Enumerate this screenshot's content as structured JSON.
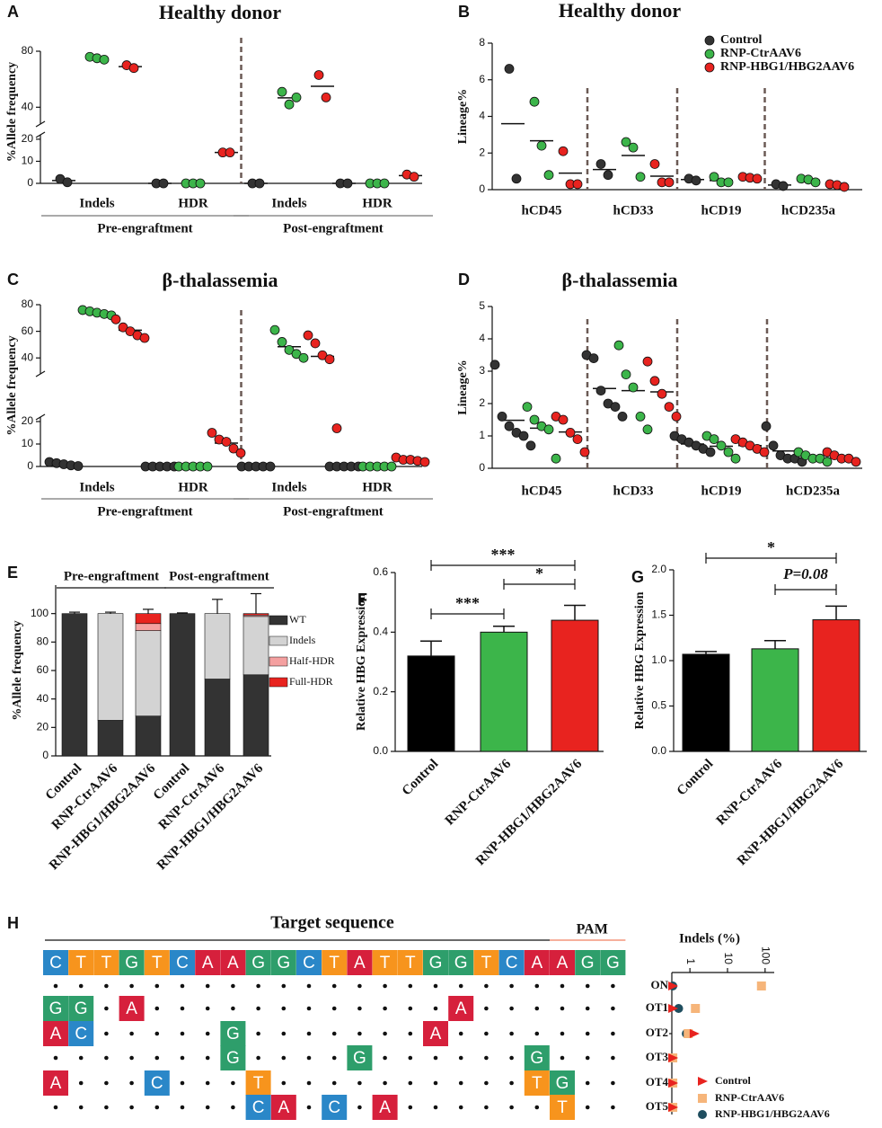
{
  "chart_data": [
    {
      "panel": "A",
      "type": "dot",
      "title": "Healthy donor",
      "ylabel": "%Allele frequency",
      "categories": [
        "Indels",
        "HDR",
        "Indels",
        "HDR"
      ],
      "groups": [
        "Pre-engraftment",
        "Post-engraftment"
      ],
      "dividers": "groups",
      "ysegments": [
        [
          0,
          22
        ],
        [
          28,
          80
        ]
      ],
      "yticks": [
        0,
        10,
        20,
        40,
        80
      ],
      "series": [
        {
          "color": "#333333",
          "values": [
            [
              2,
              0.5
            ],
            [
              0,
              0
            ],
            [
              0,
              0
            ],
            [
              0,
              0
            ]
          ]
        },
        {
          "color": "#3cb54a",
          "values": [
            [
              76,
              75,
              74
            ],
            [
              0,
              0,
              0
            ],
            [
              51,
              42,
              47
            ],
            [
              0,
              0,
              0
            ]
          ]
        },
        {
          "color": "#e8231f",
          "values": [
            [
              70,
              68
            ],
            [
              14,
              14
            ],
            [
              63,
              47
            ],
            [
              4,
              3
            ]
          ]
        }
      ]
    },
    {
      "panel": "B",
      "type": "dot",
      "title": "Healthy donor",
      "ylabel": "Lineage%",
      "categories": [
        "hCD45",
        "hCD33",
        "hCD19",
        "hCD235a"
      ],
      "dividers": "categories",
      "ylim": [
        0,
        8
      ],
      "yticks": [
        0,
        2,
        4,
        6,
        8
      ],
      "series": [
        {
          "name": "Control",
          "color": "#333333",
          "values": [
            [
              6.6,
              0.6
            ],
            [
              1.4,
              0.8
            ],
            [
              0.6,
              0.5
            ],
            [
              0.3,
              0.2
            ]
          ]
        },
        {
          "name": "RNP-CtrAAV6",
          "color": "#3cb54a",
          "values": [
            [
              4.8,
              2.4,
              0.8
            ],
            [
              2.6,
              2.3,
              0.7
            ],
            [
              0.7,
              0.4,
              0.4
            ],
            [
              0.6,
              0.55,
              0.4
            ]
          ]
        },
        {
          "name": "RNP-HBG1/HBG2AAV6",
          "color": "#e8231f",
          "values": [
            [
              2.1,
              0.3,
              0.3
            ],
            [
              1.4,
              0.4,
              0.4
            ],
            [
              0.7,
              0.65,
              0.6
            ],
            [
              0.3,
              0.25,
              0.15
            ]
          ]
        }
      ]
    },
    {
      "panel": "C",
      "type": "dot",
      "title": "β-thalassemia",
      "ylabel": "%Allele frequency",
      "categories": [
        "Indels",
        "HDR",
        "Indels",
        "HDR"
      ],
      "groups": [
        "Pre-engraftment",
        "Post-engraftment"
      ],
      "dividers": "groups",
      "ysegments": [
        [
          0,
          22
        ],
        [
          28,
          80
        ]
      ],
      "yticks": [
        0,
        10,
        20,
        40,
        60,
        80
      ],
      "series": [
        {
          "color": "#333333",
          "values": [
            [
              2,
              1.5,
              1,
              0.5,
              0.2
            ],
            [
              0,
              0,
              0,
              0,
              0
            ],
            [
              0,
              0,
              0,
              0,
              0
            ],
            [
              0,
              0,
              0,
              0,
              0
            ]
          ]
        },
        {
          "color": "#3cb54a",
          "values": [
            [
              76,
              75,
              74,
              73,
              72
            ],
            [
              0,
              0,
              0,
              0,
              0
            ],
            [
              61,
              52,
              46,
              43,
              40
            ],
            [
              0,
              0,
              0,
              0,
              0
            ]
          ]
        },
        {
          "color": "#e8231f",
          "values": [
            [
              69,
              63,
              60,
              57,
              55
            ],
            [
              15,
              12,
              11,
              8,
              6
            ],
            [
              57,
              51,
              42,
              39,
              17
            ],
            [
              4,
              3,
              3,
              2.5,
              2
            ]
          ]
        }
      ]
    },
    {
      "panel": "D",
      "type": "dot",
      "title": "β-thalassemia",
      "ylabel": "Lineage%",
      "categories": [
        "hCD45",
        "hCD33",
        "hCD19",
        "hCD235a"
      ],
      "dividers": "categories",
      "ylim": [
        0,
        5
      ],
      "yticks": [
        0,
        1,
        2,
        3,
        4,
        5
      ],
      "series": [
        {
          "color": "#333333",
          "values": [
            [
              3.2,
              1.6,
              1.3,
              1.1,
              1.0,
              0.7
            ],
            [
              3.5,
              3.4,
              2.4,
              2.0,
              1.9,
              1.6
            ],
            [
              1.0,
              0.9,
              0.8,
              0.7,
              0.6,
              0.5
            ],
            [
              1.3,
              0.7,
              0.4,
              0.3,
              0.3,
              0.2
            ]
          ]
        },
        {
          "color": "#3cb54a",
          "values": [
            [
              1.9,
              1.5,
              1.3,
              1.2,
              0.3
            ],
            [
              3.8,
              2.9,
              2.5,
              1.6,
              1.2
            ],
            [
              1.0,
              0.9,
              0.7,
              0.5,
              0.3
            ],
            [
              0.5,
              0.4,
              0.3,
              0.3,
              0.2
            ]
          ]
        },
        {
          "color": "#e8231f",
          "values": [
            [
              1.6,
              1.5,
              1.1,
              0.9,
              0.5
            ],
            [
              3.3,
              2.7,
              2.3,
              1.9,
              1.6
            ],
            [
              0.9,
              0.8,
              0.7,
              0.6,
              0.5
            ],
            [
              0.5,
              0.4,
              0.3,
              0.3,
              0.2
            ]
          ]
        }
      ]
    },
    {
      "panel": "E",
      "type": "stacked_bar",
      "ylabel": "%Allele frequency",
      "categories": [
        "Control",
        "RNP-CtrAAV6",
        "RNP-HBG1/HBG2AAV6",
        "Control",
        "RNP-CtrAAV6",
        "RNP-HBG1/HBG2AAV6"
      ],
      "groups": [
        "Pre-engraftment",
        "Post-engraftment"
      ],
      "ylim": [
        0,
        120
      ],
      "yticks": [
        0,
        20,
        40,
        60,
        80,
        100
      ],
      "series": [
        {
          "name": "WT",
          "color": "#333333",
          "values": [
            100,
            25,
            28,
            100,
            54,
            57
          ],
          "errors": [
            1,
            2,
            9,
            0.5,
            10,
            16
          ]
        },
        {
          "name": "Indels",
          "color": "#d3d3d3",
          "values": [
            0,
            75,
            60,
            0,
            46,
            41
          ],
          "errors": [
            null,
            1,
            null,
            null,
            10,
            null
          ]
        },
        {
          "name": "Half-HDR",
          "color": "#f4a0a0",
          "values": [
            0,
            0,
            5,
            0,
            0,
            1
          ],
          "errors": [
            null,
            null,
            null,
            null,
            null,
            null
          ]
        },
        {
          "name": "Full-HDR",
          "color": "#e8231f",
          "values": [
            0,
            0,
            7,
            0,
            0,
            1
          ],
          "errors": [
            null,
            null,
            3,
            null,
            null,
            14
          ]
        }
      ]
    },
    {
      "panel": "F",
      "type": "bar",
      "ylabel": "Relative HBG Expression",
      "categories": [
        "Control",
        "RNP-CtrAAV6",
        "RNP-HBG1/HBG2AAV6"
      ],
      "values": [
        0.32,
        0.4,
        0.44
      ],
      "errors": [
        0.05,
        0.02,
        0.05
      ],
      "colors": [
        "#000000",
        "#3cb54a",
        "#e8231f"
      ],
      "ylim": [
        0,
        0.6
      ],
      "yticks": [
        {
          "value": 0,
          "label": "0.0"
        },
        0.2,
        0.4,
        0.6
      ],
      "brackets": [
        {
          "categories": [
            "Control",
            "RNP-CtrAAV6"
          ],
          "label": "***"
        },
        {
          "categories": [
            "RNP-CtrAAV6",
            "RNP-HBG1/HBG2AAV6"
          ],
          "label": "*"
        },
        {
          "categories": [
            "Control",
            "RNP-HBG1/HBG2AAV6"
          ],
          "label": "***"
        }
      ]
    },
    {
      "panel": "G",
      "type": "bar",
      "ylabel": "Relative HBG Expression",
      "categories": [
        "Control",
        "RNP-CtrAAV6",
        "RNP-HBG1/HBG2AAV6"
      ],
      "values": [
        1.07,
        1.13,
        1.45
      ],
      "errors": [
        0.03,
        0.09,
        0.15
      ],
      "colors": [
        "#000000",
        "#3cb54a",
        "#e8231f"
      ],
      "ylim": [
        0,
        2.0
      ],
      "yticks": [
        {
          "value": 0,
          "label": "0.0"
        },
        0.5,
        {
          "value": 1,
          "label": "1.0"
        },
        1.5,
        {
          "value": 2,
          "label": "2.0"
        }
      ],
      "brackets": [
        {
          "categories": [
            "RNP-CtrAAV6",
            "RNP-HBG1/HBG2AAV6"
          ],
          "label": "P=0.08"
        },
        {
          "categories": [
            "Control",
            "RNP-HBG1/HBG2AAV6"
          ],
          "label": "*"
        }
      ]
    },
    {
      "panel": "H",
      "type": "sequence",
      "title": "Target sequence",
      "pam": "PAM",
      "base_colors": {
        "A": "#d6203c",
        "C": "#2a87c8",
        "G": "#2e9e6b",
        "T": "#f7941d"
      },
      "target": [
        "C",
        "T",
        "T",
        "G",
        "T",
        "C",
        "A",
        "A",
        "G",
        "G",
        "C",
        "T",
        "A",
        "T",
        "T",
        "G",
        "G",
        "T",
        "C",
        "A",
        "A",
        "G",
        "G"
      ],
      "rows": [
        [
          null,
          null,
          null,
          null,
          null,
          null,
          null,
          null,
          null,
          null,
          null,
          null,
          null,
          null,
          null,
          null,
          null,
          null,
          null,
          null,
          null,
          null,
          null
        ],
        [
          "G",
          "G",
          null,
          "A",
          null,
          null,
          null,
          null,
          null,
          null,
          null,
          null,
          null,
          null,
          null,
          null,
          "A",
          null,
          null,
          null,
          null,
          null,
          null
        ],
        [
          "A",
          "C",
          null,
          null,
          null,
          null,
          null,
          "G",
          null,
          null,
          null,
          null,
          null,
          null,
          null,
          "A",
          null,
          null,
          null,
          null,
          null,
          null,
          null
        ],
        [
          null,
          null,
          null,
          null,
          null,
          null,
          null,
          "G",
          null,
          null,
          null,
          null,
          "G",
          null,
          null,
          null,
          null,
          null,
          null,
          "G",
          null,
          null,
          null
        ],
        [
          "A",
          null,
          null,
          null,
          "C",
          null,
          null,
          null,
          "T",
          null,
          null,
          null,
          null,
          null,
          null,
          null,
          null,
          null,
          null,
          "T",
          "G",
          null,
          null
        ],
        [
          null,
          null,
          null,
          null,
          null,
          null,
          null,
          null,
          "C",
          "A",
          null,
          "C",
          null,
          "A",
          null,
          null,
          null,
          null,
          null,
          null,
          "T",
          null,
          null
        ]
      ]
    },
    {
      "type": "offtarget",
      "title": "Indels (%)",
      "categories": [
        "ON",
        "OT1",
        "OT2",
        "OT3",
        "OT4",
        "OT5"
      ],
      "xscale": "log",
      "xlim": [
        0.33,
        175
      ],
      "xticks": [
        1,
        10,
        100
      ],
      "series": [
        {
          "name": "Control",
          "color": "#e8231f",
          "marker": "triangle",
          "values": [
            0.35,
            0.35,
            1.3,
            0.35,
            0.35,
            0.35
          ]
        },
        {
          "name": "RNP-CtrAAV6",
          "color": "#f6b57a",
          "marker": "square",
          "values": [
            80,
            1.4,
            0.9,
            0.35,
            0.35,
            0.35
          ]
        },
        {
          "name": "RNP-HBG1/HBG2AAV6",
          "color": "#1f4e5f",
          "marker": "circle",
          "values": [
            0.35,
            0.5,
            0.8,
            0.35,
            0.35,
            0.35
          ]
        }
      ]
    }
  ]
}
